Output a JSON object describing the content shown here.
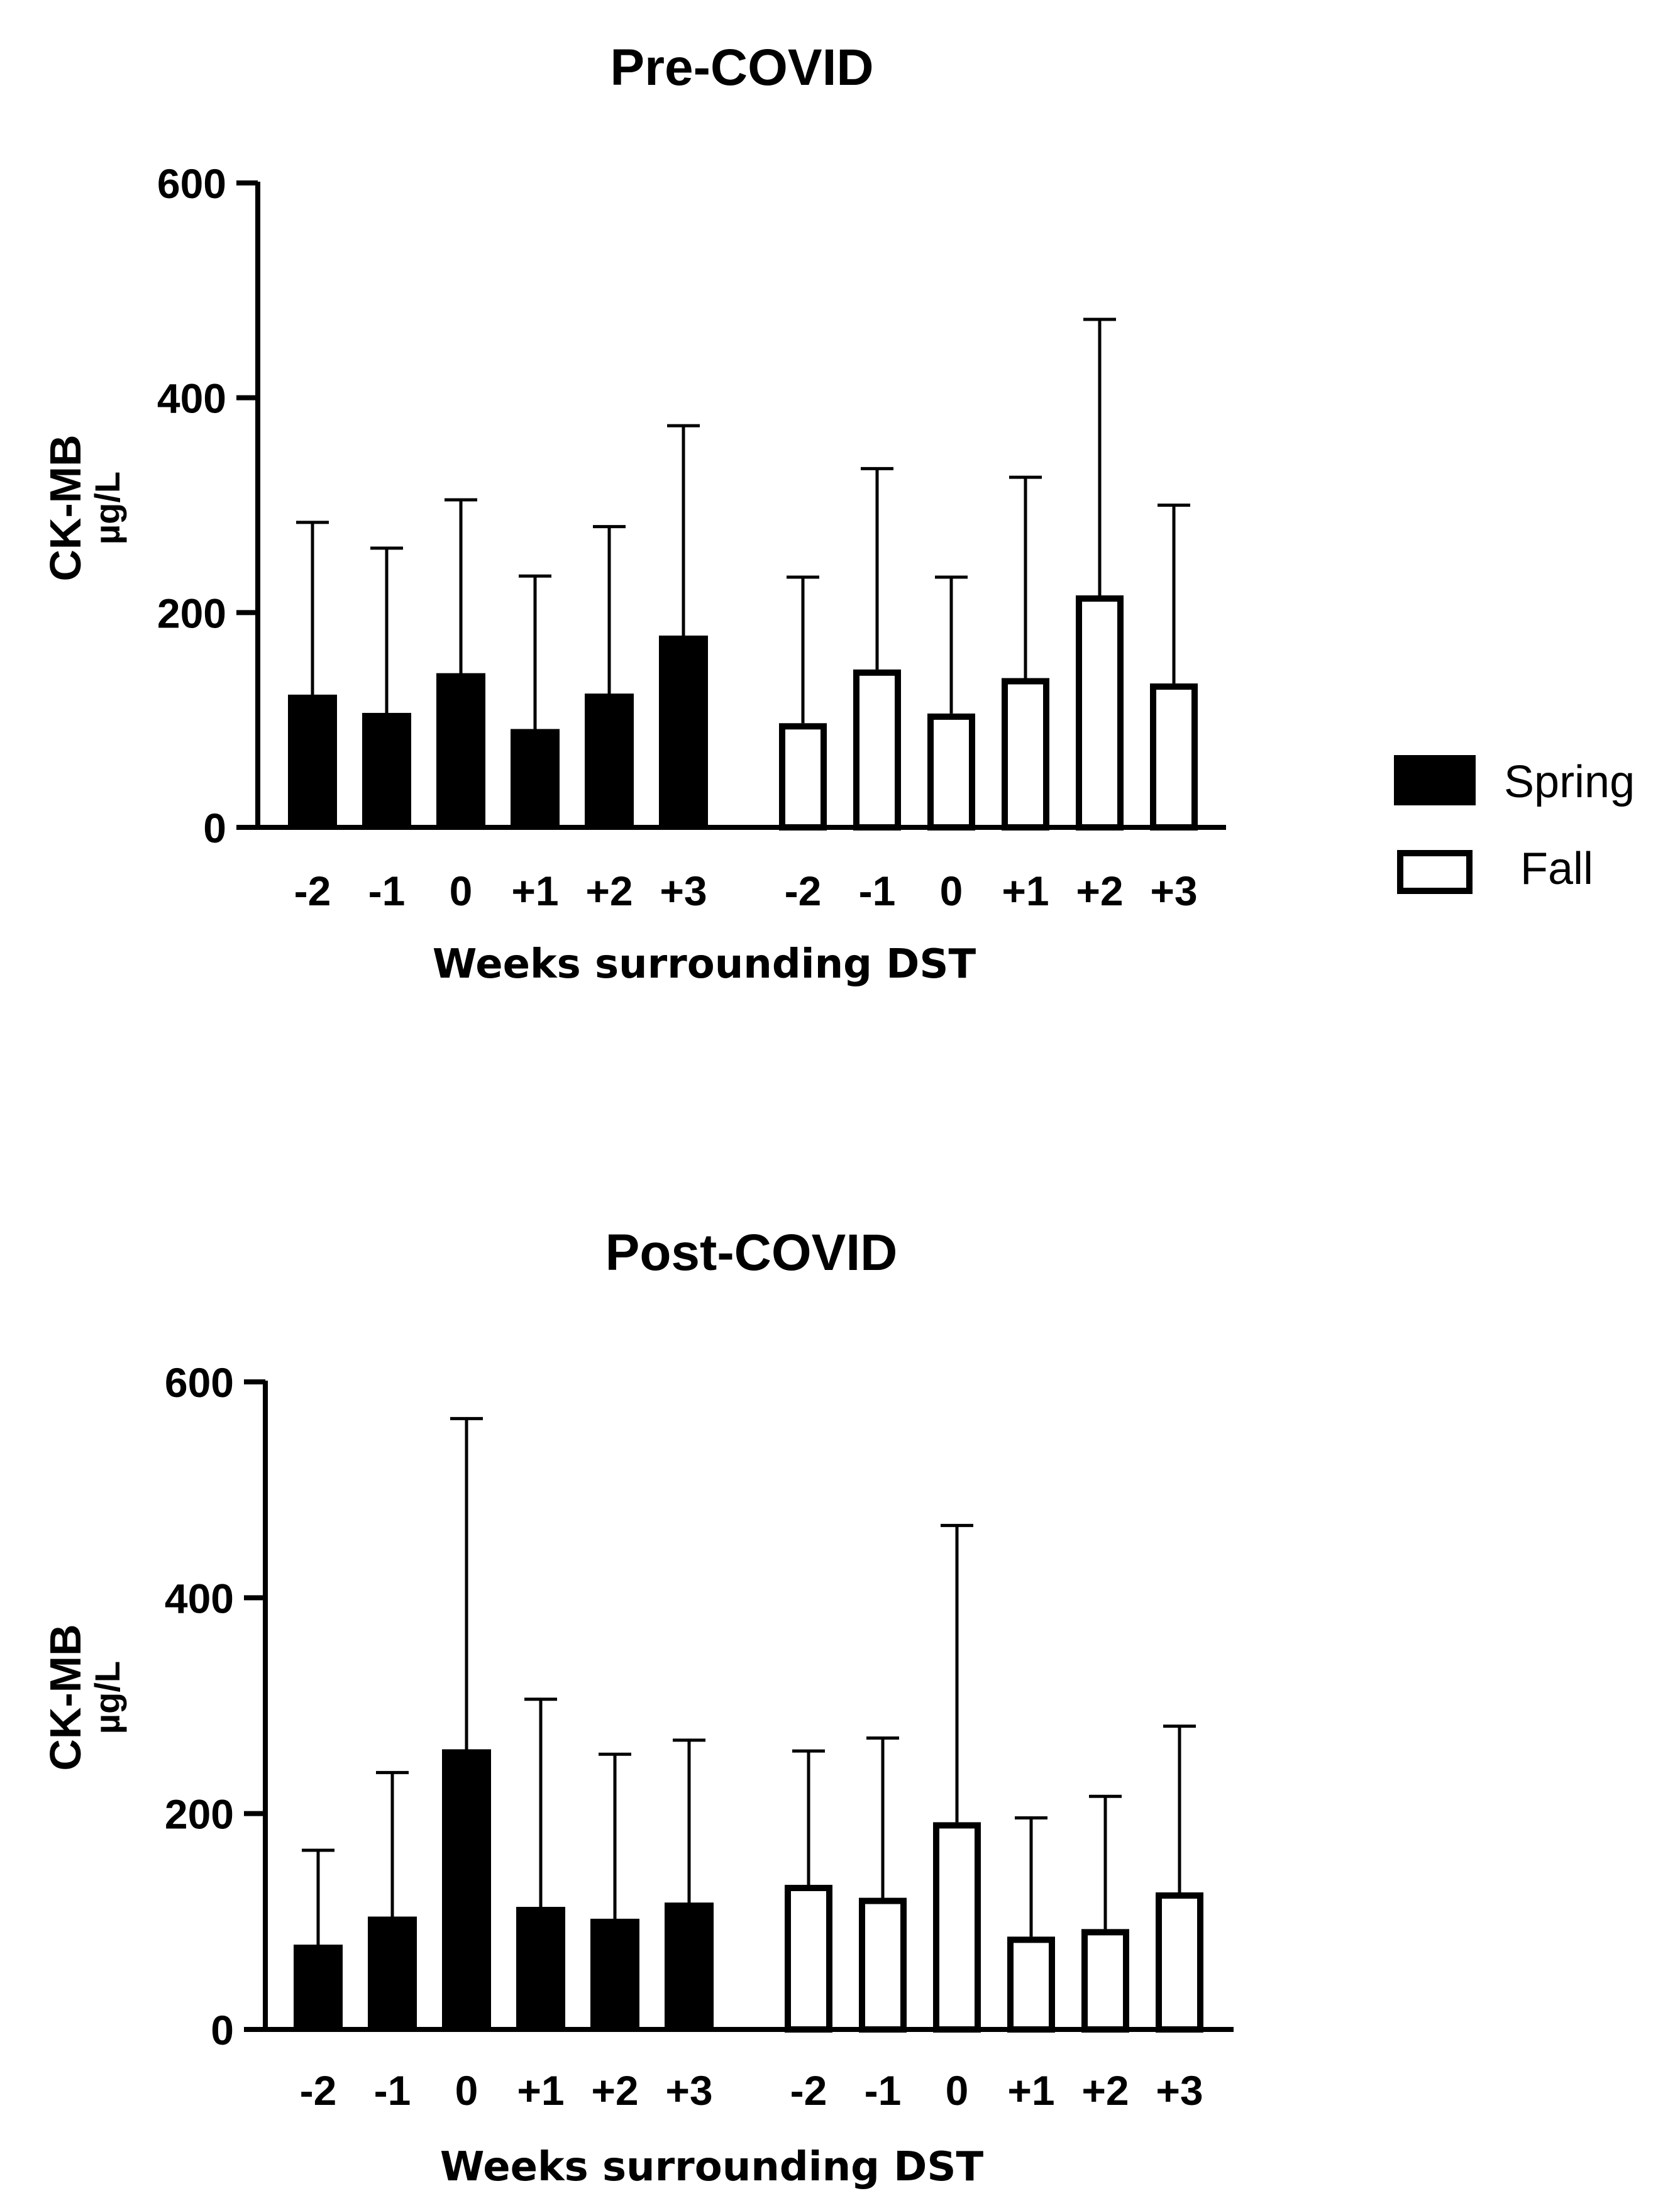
{
  "chart_data": [
    {
      "type": "bar",
      "title": "Pre-COVID",
      "xlabel": "Weeks surrounding DST",
      "ylabel": "CK-MB",
      "yunit": "µg/L",
      "ylim": [
        0,
        600
      ],
      "yticks": [
        0,
        200,
        400,
        600
      ],
      "series": [
        {
          "name": "Spring",
          "categories": [
            "-2",
            "-1",
            "0",
            "+1",
            "+2",
            "+3"
          ],
          "values": [
            123,
            106,
            143,
            91,
            124,
            178
          ],
          "errors": [
            161,
            154,
            162,
            143,
            156,
            196
          ]
        },
        {
          "name": "Fall",
          "categories": [
            "-2",
            "-1",
            "0",
            "+1",
            "+2",
            "+3"
          ],
          "values": [
            97,
            147,
            106,
            139,
            216,
            134
          ],
          "errors": [
            136,
            187,
            127,
            187,
            257,
            166
          ]
        }
      ]
    },
    {
      "type": "bar",
      "title": "Post-COVID",
      "xlabel": "Weeks surrounding DST",
      "ylabel": "CK-MB",
      "yunit": "µg/L",
      "ylim": [
        0,
        600
      ],
      "yticks": [
        0,
        200,
        400,
        600
      ],
      "series": [
        {
          "name": "Spring",
          "categories": [
            "-2",
            "-1",
            "0",
            "+1",
            "+2",
            "+3"
          ],
          "values": [
            78,
            104,
            259,
            113,
            102,
            117
          ],
          "errors": [
            88,
            134,
            307,
            193,
            153,
            151
          ]
        },
        {
          "name": "Fall",
          "categories": [
            "-2",
            "-1",
            "0",
            "+1",
            "+2",
            "+3"
          ],
          "values": [
            134,
            122,
            192,
            86,
            93,
            127
          ],
          "errors": [
            124,
            148,
            275,
            110,
            123,
            154
          ]
        }
      ]
    }
  ],
  "legend": {
    "items": [
      {
        "name": "Spring",
        "fill": "#000000"
      },
      {
        "name": "Fall",
        "fill": "#ffffff"
      }
    ]
  }
}
